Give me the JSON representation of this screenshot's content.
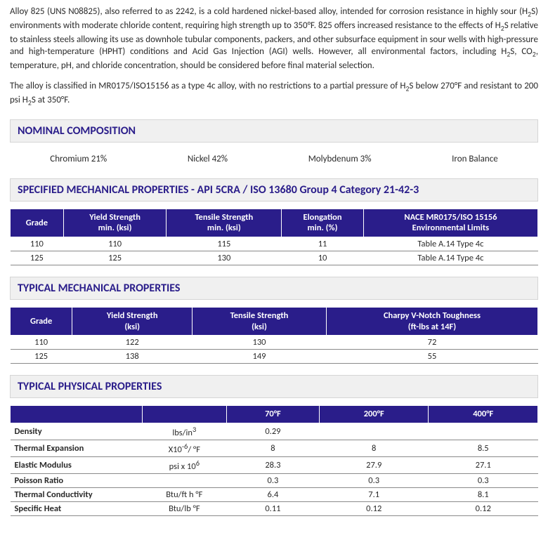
{
  "colors": {
    "section_title_text": "#2a1d8a",
    "table_header_bg": "#2a1d8a",
    "table_header_text": "#ffffff"
  },
  "intro": {
    "p1_pre": "Alloy 825 (UNS N08825), also referred to as 2242, is a cold hardened nickel-based alloy, intended for corrosion resistance in highly sour (H",
    "p1_sub1": "2",
    "p1_mid1": "S) environments with moderate chloride content, requiring high strength up to 350°F. 825 offers increased resistance to the effects of H",
    "p1_sub2": "2",
    "p1_mid2": "S relative to stainless steels allowing its use as downhole tubular components, packers, and other subsurface equipment in sour wells with high-pressure and high-temperature (HPHT) conditions and Acid Gas Injection (AGI) wells. However, all environmental factors, including H",
    "p1_sub3": "2",
    "p1_mid3": "S, CO",
    "p1_sub4": "2",
    "p1_post": ", temperature, pH, and chloride concentration, should be considered before final material selection.",
    "p2_pre": "The alloy is classified in MR0175/ISO15156 as a type 4c alloy, with no restrictions to a partial pressure of H",
    "p2_sub1": "2",
    "p2_mid": "S below 270°F and resistant to 200 psi H",
    "p2_sub2": "2",
    "p2_post": "S at 350°F."
  },
  "sections": {
    "composition": "NOMINAL COMPOSITION",
    "specified_mech": "SPECIFIED MECHANICAL PROPERTIES - API 5CRA / ISO 13680 Group 4 Category 21-42-3",
    "typical_mech": "TYPICAL MECHANICAL PROPERTIES",
    "typical_phys": "TYPICAL PHYSICAL PROPERTIES"
  },
  "composition": {
    "items": [
      {
        "label": "Chromium 21%"
      },
      {
        "label": "Nickel 42%"
      },
      {
        "label": "Molybdenum 3%"
      },
      {
        "label": "Iron  Balance"
      }
    ]
  },
  "specified_mech": {
    "headers": {
      "grade": "Grade",
      "yield_l1": "Yield Strength",
      "yield_l2": "min. (ksi)",
      "tensile_l1": "Tensile Strength",
      "tensile_l2": "min. (ksi)",
      "elong_l1": "Elongation",
      "elong_l2": "min. (%)",
      "nace_l1": "NACE MR0175/ISO 15156",
      "nace_l2": "Environmental Limits"
    },
    "rows": [
      {
        "grade": "110",
        "yield": "110",
        "tensile": "115",
        "elong": "11",
        "nace": "Table A.14 Type 4c"
      },
      {
        "grade": "125",
        "yield": "125",
        "tensile": "130",
        "elong": "10",
        "nace": "Table A.14 Type 4c"
      }
    ]
  },
  "typical_mech": {
    "headers": {
      "grade": "Grade",
      "yield_l1": "Yield Strength",
      "yield_l2": "(ksi)",
      "tensile_l1": "Tensile Strength",
      "tensile_l2": "(ksi)",
      "charpy_l1": "Charpy V-Notch Toughness",
      "charpy_l2": "(ft-lbs at 14F)"
    },
    "rows": [
      {
        "grade": "110",
        "yield": "122",
        "tensile": "130",
        "charpy": "72"
      },
      {
        "grade": "125",
        "yield": "138",
        "tensile": "149",
        "charpy": "55"
      }
    ]
  },
  "typical_phys": {
    "headers": {
      "blank": "",
      "unit": "",
      "t70": "70°F",
      "t200": "200°F",
      "t400": "400°F"
    },
    "rows": [
      {
        "name": "Density",
        "unit_html": "lbs/in<sup>3</sup>",
        "t70": "0.29",
        "t200": "",
        "t400": ""
      },
      {
        "name": "Thermal Expansion",
        "unit_html": "X10<sup>-6</sup>/ °F",
        "t70": "8",
        "t200": "8",
        "t400": "8.5"
      },
      {
        "name": "Elastic Modulus",
        "unit_html": "psi x 10<sup>6</sup>",
        "t70": "28.3",
        "t200": "27.9",
        "t400": "27.1"
      },
      {
        "name": "Poisson Ratio",
        "unit_html": "",
        "t70": "0.3",
        "t200": "0.3",
        "t400": "0.3"
      },
      {
        "name": "Thermal Conductivity",
        "unit_html": "Btu/ft h °F",
        "t70": "6.4",
        "t200": "7.1",
        "t400": "8.1"
      },
      {
        "name": "Specific Heat",
        "unit_html": "Btu/lb °F",
        "t70": "0.11",
        "t200": "0.12",
        "t400": "0.12"
      }
    ]
  }
}
